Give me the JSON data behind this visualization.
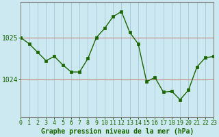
{
  "x": [
    0,
    1,
    2,
    3,
    4,
    5,
    6,
    7,
    8,
    9,
    10,
    11,
    12,
    13,
    14,
    15,
    16,
    17,
    18,
    19,
    20,
    21,
    22,
    23
  ],
  "y": [
    1025.0,
    1024.85,
    1024.65,
    1024.45,
    1024.55,
    1024.35,
    1024.18,
    1024.18,
    1024.5,
    1025.0,
    1025.22,
    1025.5,
    1025.62,
    1025.12,
    1024.85,
    1023.95,
    1024.05,
    1023.7,
    1023.72,
    1023.52,
    1023.75,
    1024.3,
    1024.52,
    1024.55
  ],
  "line_color": "#1a6600",
  "marker_color": "#1a6600",
  "bg_color": "#cce8f0",
  "grid_color_v": "#aaccd8",
  "grid_color_h": "#cc8888",
  "border_color": "#888888",
  "xlabel": "Graphe pression niveau de la mer (hPa)",
  "ylabel_ticks": [
    1024,
    1025
  ],
  "ylim": [
    1023.1,
    1025.85
  ],
  "xlim": [
    0,
    23
  ],
  "xtick_labels": [
    "0",
    "1",
    "2",
    "3",
    "4",
    "5",
    "6",
    "7",
    "8",
    "9",
    "10",
    "11",
    "12",
    "13",
    "14",
    "15",
    "16",
    "17",
    "18",
    "19",
    "20",
    "21",
    "22",
    "23"
  ],
  "font_size_xlabel": 7,
  "font_size_yticks": 7,
  "font_size_xticks": 6
}
